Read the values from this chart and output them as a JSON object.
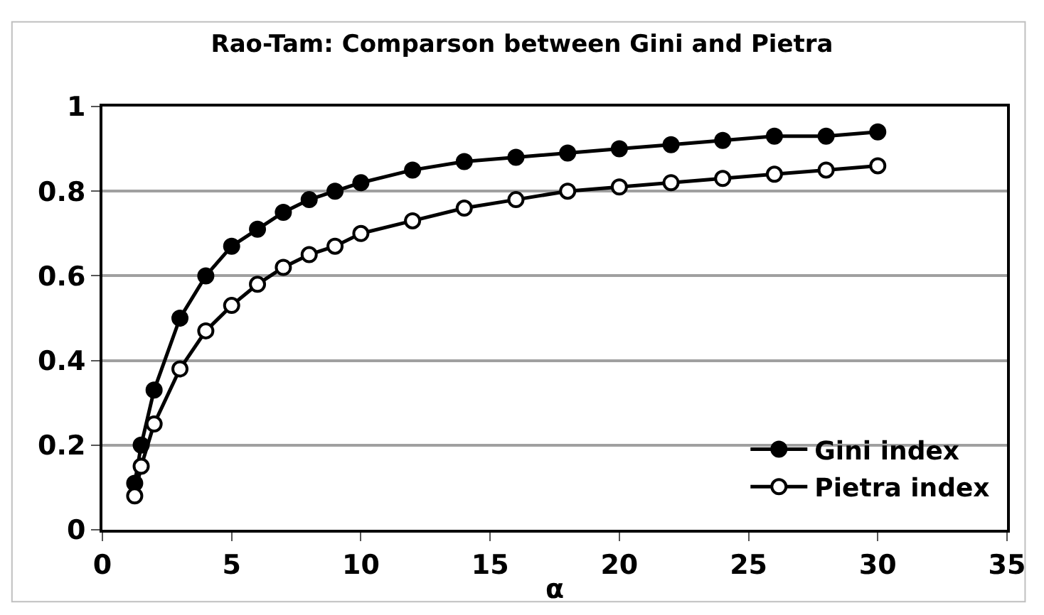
{
  "chart_data": {
    "type": "line",
    "title": "Rao-Tam: Comparson between Gini and Pietra",
    "xlabel": "α",
    "x": [
      1.25,
      1.5,
      2,
      3,
      4,
      5,
      6,
      7,
      8,
      9,
      10,
      12,
      14,
      16,
      18,
      20,
      22,
      24,
      26,
      28,
      30
    ],
    "series": [
      {
        "name": "Gini index",
        "color": "#000000",
        "marker": "circle",
        "values": [
          0.11,
          0.2,
          0.33,
          0.5,
          0.6,
          0.67,
          0.71,
          0.75,
          0.78,
          0.8,
          0.82,
          0.85,
          0.87,
          0.88,
          0.89,
          0.9,
          0.91,
          0.92,
          0.93,
          0.93,
          0.94
        ]
      },
      {
        "name": "Pietra index",
        "color": "#000000",
        "marker": "circle-open",
        "values": [
          0.08,
          0.15,
          0.25,
          0.38,
          0.47,
          0.53,
          0.58,
          0.62,
          0.65,
          0.67,
          0.7,
          0.73,
          0.76,
          0.78,
          0.8,
          0.81,
          0.82,
          0.83,
          0.84,
          0.85,
          0.86
        ]
      }
    ],
    "xlim": [
      0,
      35
    ],
    "xticks": [
      0,
      5,
      10,
      15,
      20,
      25,
      30,
      35
    ],
    "ylim": [
      0,
      1
    ],
    "yticks": [
      0,
      0.2,
      0.4,
      0.6,
      0.8,
      1
    ],
    "grid": "y",
    "legend": "bottom right",
    "line_style": "solid"
  }
}
